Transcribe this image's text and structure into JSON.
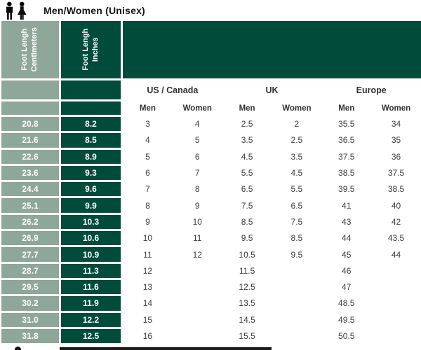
{
  "title": "Men/Women (Unisex)",
  "colors": {
    "sage": "#8FA69B",
    "dark_green": "#014B3B",
    "text": "#3c3c3c"
  },
  "icon": "men-women-figures-icon",
  "table": {
    "col1_header": [
      "Foot Lengh",
      "Centimeters"
    ],
    "col2_header": [
      "Foot Lengh",
      "Inches"
    ],
    "regions": [
      "US / Canada",
      "UK",
      "Europe"
    ],
    "subheaders": [
      "Men",
      "Women",
      "Men",
      "Women",
      "Men",
      "Women"
    ],
    "rows": [
      [
        "20.8",
        "8.2",
        "3",
        "4",
        "2.5",
        "2",
        "35.5",
        "34"
      ],
      [
        "21.6",
        "8.5",
        "4",
        "5",
        "3.5",
        "2.5",
        "36.5",
        "35"
      ],
      [
        "22.6",
        "8.9",
        "5",
        "6",
        "4.5",
        "3.5",
        "37.5",
        "36"
      ],
      [
        "23.6",
        "9.3",
        "6",
        "7",
        "5.5",
        "4.5",
        "38.5",
        "37.5"
      ],
      [
        "24.4",
        "9.6",
        "7",
        "8",
        "6.5",
        "5.5",
        "39.5",
        "38.5"
      ],
      [
        "25.1",
        "9.9",
        "8",
        "9",
        "7.5",
        "6.5",
        "41",
        "40"
      ],
      [
        "26.2",
        "10.3",
        "9",
        "10",
        "8.5",
        "7.5",
        "43",
        "42"
      ],
      [
        "26.9",
        "10.6",
        "10",
        "11",
        "9.5",
        "8.5",
        "44",
        "43.5"
      ],
      [
        "27.7",
        "10.9",
        "11",
        "12",
        "10.5",
        "9.5",
        "45",
        "44"
      ],
      [
        "28.7",
        "11.3",
        "12",
        "",
        "11.5",
        "",
        "46",
        ""
      ],
      [
        "29.5",
        "11.6",
        "13",
        "",
        "12.5",
        "",
        "47",
        ""
      ],
      [
        "30.2",
        "11.9",
        "14",
        "",
        "13.5",
        "",
        "48.5",
        ""
      ],
      [
        "31.0",
        "12.2",
        "15",
        "",
        "14.5",
        "",
        "49.5",
        ""
      ],
      [
        "31.8",
        "12.5",
        "16",
        "",
        "15.5",
        "",
        "50.5",
        ""
      ]
    ]
  }
}
